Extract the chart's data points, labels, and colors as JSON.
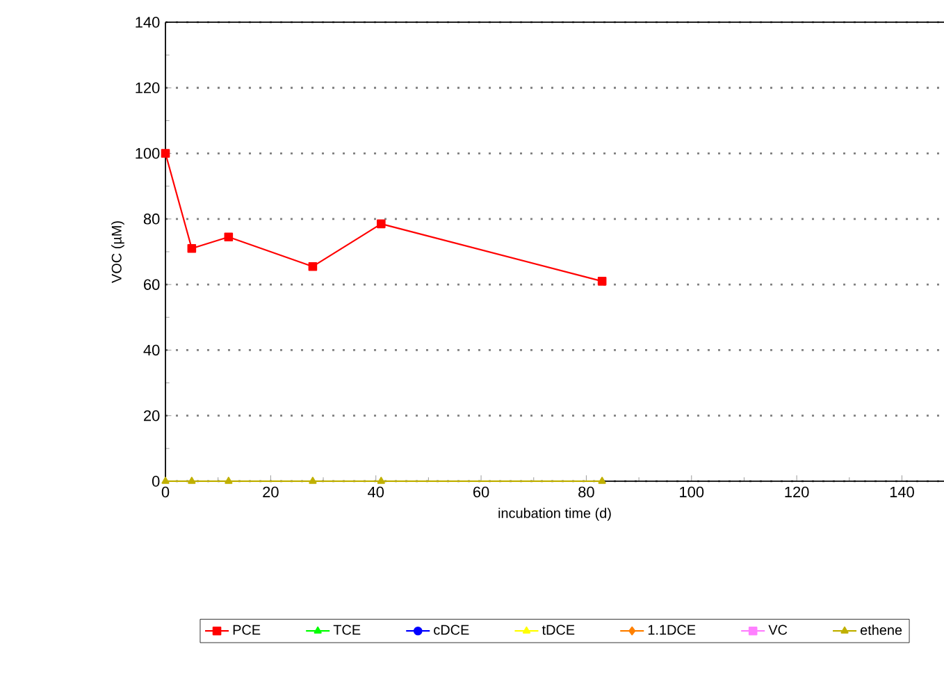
{
  "chart_data": {
    "type": "line",
    "xlabel": "incubation time (d)",
    "ylabel": "VOC (µM)",
    "x": [
      0,
      5,
      12,
      28,
      41,
      83
    ],
    "series": [
      {
        "name": "PCE",
        "color": "#ff0000",
        "marker": "square",
        "values": [
          100,
          71,
          74.5,
          65.5,
          78.5,
          61
        ]
      },
      {
        "name": "TCE",
        "color": "#00ff00",
        "marker": "triangle",
        "values": [
          null,
          null,
          null,
          null,
          null,
          null
        ]
      },
      {
        "name": "cDCE",
        "color": "#0000ff",
        "marker": "circle",
        "values": [
          null,
          null,
          null,
          null,
          null,
          null
        ]
      },
      {
        "name": "tDCE",
        "color": "#ffff00",
        "marker": "triangle",
        "values": [
          null,
          null,
          null,
          null,
          null,
          null
        ]
      },
      {
        "name": "1.1DCE",
        "color": "#ff8000",
        "marker": "diamond",
        "values": [
          null,
          null,
          null,
          null,
          null,
          null
        ]
      },
      {
        "name": "VC",
        "color": "#ff80ff",
        "marker": "square",
        "values": [
          null,
          null,
          null,
          null,
          null,
          null
        ]
      },
      {
        "name": "ethene",
        "color": "#c0b000",
        "marker": "triangle",
        "values": [
          0,
          0,
          0,
          0,
          0,
          0
        ]
      }
    ],
    "xlim": [
      0,
      148
    ],
    "ylim": [
      0,
      140
    ],
    "xticks": [
      0,
      20,
      40,
      60,
      80,
      100,
      120,
      140
    ],
    "yticks": [
      0,
      20,
      40,
      60,
      80,
      100,
      120,
      140
    ],
    "grid": "y",
    "legend": "bottom",
    "line_style": "solid"
  }
}
